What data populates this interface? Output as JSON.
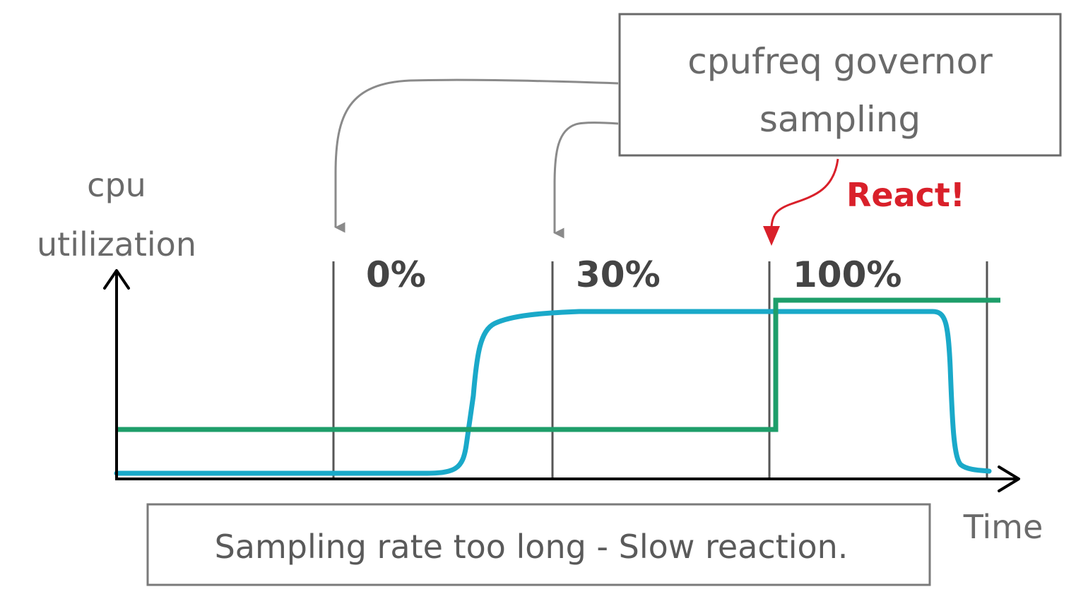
{
  "y_axis_label_lines": [
    "cpu",
    "utilization"
  ],
  "x_axis_label": "Time",
  "governor_box_lines": [
    "cpufreq governor",
    "sampling"
  ],
  "react_label": "React!",
  "sample_labels": [
    "0%",
    "30%",
    "100%"
  ],
  "caption": "Sampling rate too long - Slow reaction.",
  "colors": {
    "utilization_curve": "#1aa9c9",
    "frequency_line": "#1e9e6a",
    "react": "#d9202a",
    "axis": "#000000",
    "grey_arrow": "#8a8a8a",
    "box_border": "#6a6a6a"
  }
}
